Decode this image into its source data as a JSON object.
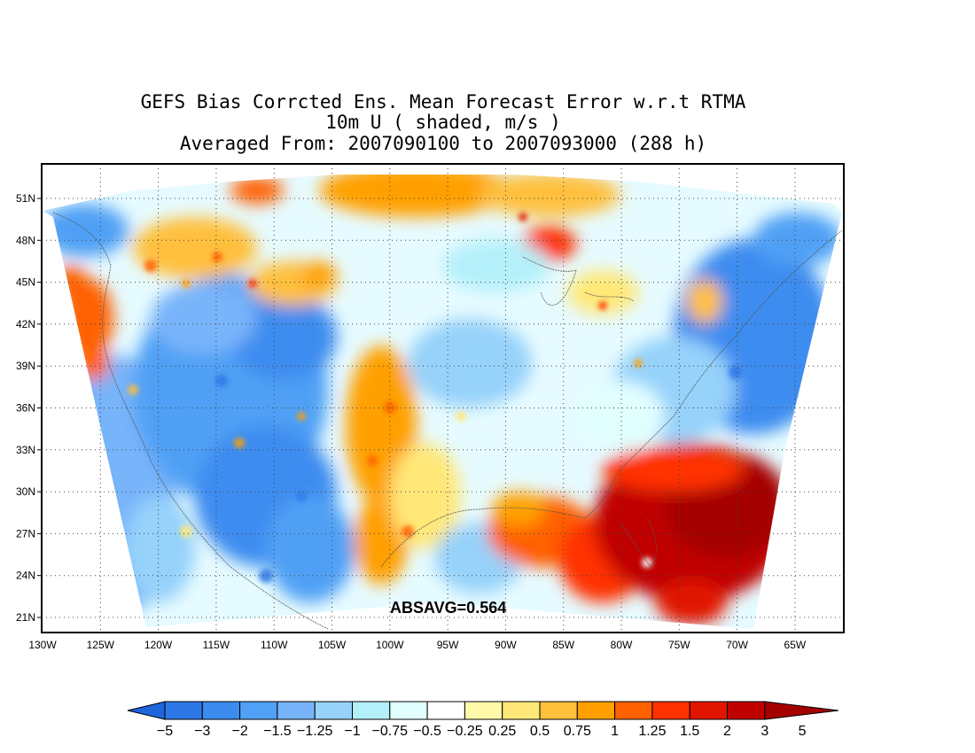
{
  "title": {
    "line1": "GEFS Bias Corrcted Ens. Mean Forecast Error w.r.t RTMA",
    "line2": "10m U ( shaded, m/s )",
    "line3": "Averaged From: 2007090100 to 2007093000 (288 h)"
  },
  "map": {
    "lon_labels": [
      "130W",
      "125W",
      "120W",
      "115W",
      "110W",
      "105W",
      "100W",
      "95W",
      "90W",
      "85W",
      "80W",
      "75W",
      "70W",
      "65W"
    ],
    "lat_labels": [
      "51N",
      "48N",
      "45N",
      "42N",
      "39N",
      "36N",
      "33N",
      "30N",
      "27N",
      "24N",
      "21N"
    ],
    "grid": "dotted",
    "domain": "CONUS (RTMA grid)"
  },
  "absavg": "ABSAVG=0.564",
  "colorbar": {
    "labels": [
      "-5",
      "-3",
      "-2",
      "-1.5",
      "-1.25",
      "-1",
      "-0.75",
      "-0.5",
      "-0.25",
      "0.25",
      "0.5",
      "0.75",
      "1",
      "1.25",
      "1.5",
      "2",
      "3",
      "5"
    ],
    "colors": [
      "#1e64dc",
      "#2d78e6",
      "#3c8cf0",
      "#50a0f5",
      "#78b4fa",
      "#96d2fa",
      "#b4f0fa",
      "#e1ffff",
      "#ffffff",
      "#fffaaa",
      "#ffe878",
      "#ffc03c",
      "#ffa000",
      "#ff6000",
      "#ff3200",
      "#e11400",
      "#c00000",
      "#a50000"
    ]
  },
  "chart_data": {
    "type": "heatmap",
    "title": "GEFS Bias Corrcted Ens. Mean Forecast Error w.r.t RTMA",
    "variable": "10m U ( shaded, m/s )",
    "period": "Averaged From: 2007090100 to 2007093000 (288 h)",
    "x_ticks": [
      "130W",
      "125W",
      "120W",
      "115W",
      "110W",
      "105W",
      "100W",
      "95W",
      "90W",
      "85W",
      "80W",
      "75W",
      "70W",
      "65W"
    ],
    "y_ticks": [
      "51N",
      "48N",
      "45N",
      "42N",
      "39N",
      "36N",
      "33N",
      "30N",
      "27N",
      "24N",
      "21N"
    ],
    "levels": [
      -5,
      -3,
      -2,
      -1.5,
      -1.25,
      -1,
      -0.75,
      -0.5,
      -0.25,
      0.25,
      0.5,
      0.75,
      1,
      1.25,
      1.5,
      2,
      3,
      5
    ],
    "absavg": 0.564
  }
}
